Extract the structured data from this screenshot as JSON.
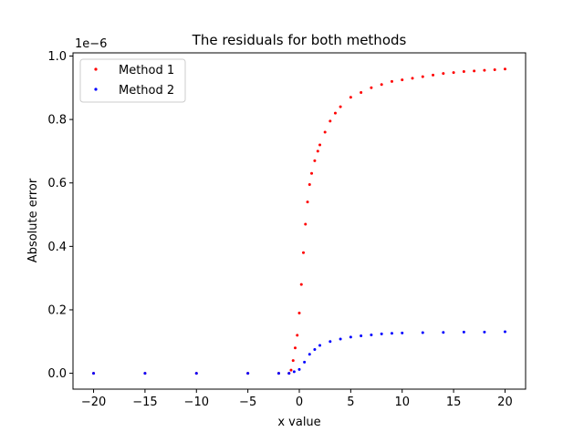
{
  "chart_data": {
    "type": "scatter",
    "title": "The residuals for both methods",
    "xlabel": "x value",
    "ylabel": "Absolute error",
    "y_multiplier_label": "1e−6",
    "xlim": [
      -22,
      22
    ],
    "ylim": [
      -0.05,
      1.01
    ],
    "xticks": [
      -20,
      -15,
      -10,
      -5,
      0,
      5,
      10,
      15,
      20
    ],
    "xtick_labels": [
      "−20",
      "−15",
      "−10",
      "−5",
      "0",
      "5",
      "10",
      "15",
      "20"
    ],
    "yticks": [
      0.0,
      0.2,
      0.4,
      0.6,
      0.8,
      1.0
    ],
    "ytick_labels": [
      "0.0",
      "0.2",
      "0.4",
      "0.6",
      "0.8",
      "1.0"
    ],
    "legend_position": "upper-left",
    "grid": false,
    "series": [
      {
        "name": "Method 1",
        "color": "#ff0000",
        "x": [
          -20,
          -15,
          -10,
          -5,
          -2,
          -1,
          -0.8,
          -0.6,
          -0.4,
          -0.2,
          0,
          0.2,
          0.4,
          0.6,
          0.8,
          1.0,
          1.2,
          1.5,
          1.8,
          2,
          2.5,
          3,
          3.5,
          4,
          5,
          6,
          7,
          8,
          9,
          10,
          11,
          12,
          13,
          14,
          15,
          16,
          17,
          18,
          19,
          20
        ],
        "y": [
          0,
          0,
          0,
          0,
          0,
          0,
          0.01,
          0.04,
          0.08,
          0.12,
          0.19,
          0.28,
          0.38,
          0.47,
          0.54,
          0.595,
          0.63,
          0.67,
          0.7,
          0.72,
          0.76,
          0.795,
          0.82,
          0.84,
          0.87,
          0.885,
          0.9,
          0.91,
          0.92,
          0.925,
          0.93,
          0.935,
          0.94,
          0.945,
          0.948,
          0.951,
          0.953,
          0.955,
          0.957,
          0.959
        ]
      },
      {
        "name": "Method 2",
        "color": "#0000ff",
        "x": [
          -20,
          -15,
          -10,
          -5,
          -2,
          -1,
          -0.5,
          0,
          0.5,
          1,
          1.5,
          2,
          3,
          4,
          5,
          6,
          7,
          8,
          9,
          10,
          12,
          14,
          16,
          18,
          20
        ],
        "y": [
          0,
          0,
          0,
          0,
          0,
          0,
          0.005,
          0.012,
          0.035,
          0.06,
          0.075,
          0.088,
          0.1,
          0.108,
          0.114,
          0.118,
          0.121,
          0.124,
          0.126,
          0.127,
          0.128,
          0.129,
          0.13,
          0.13,
          0.131
        ]
      }
    ]
  }
}
